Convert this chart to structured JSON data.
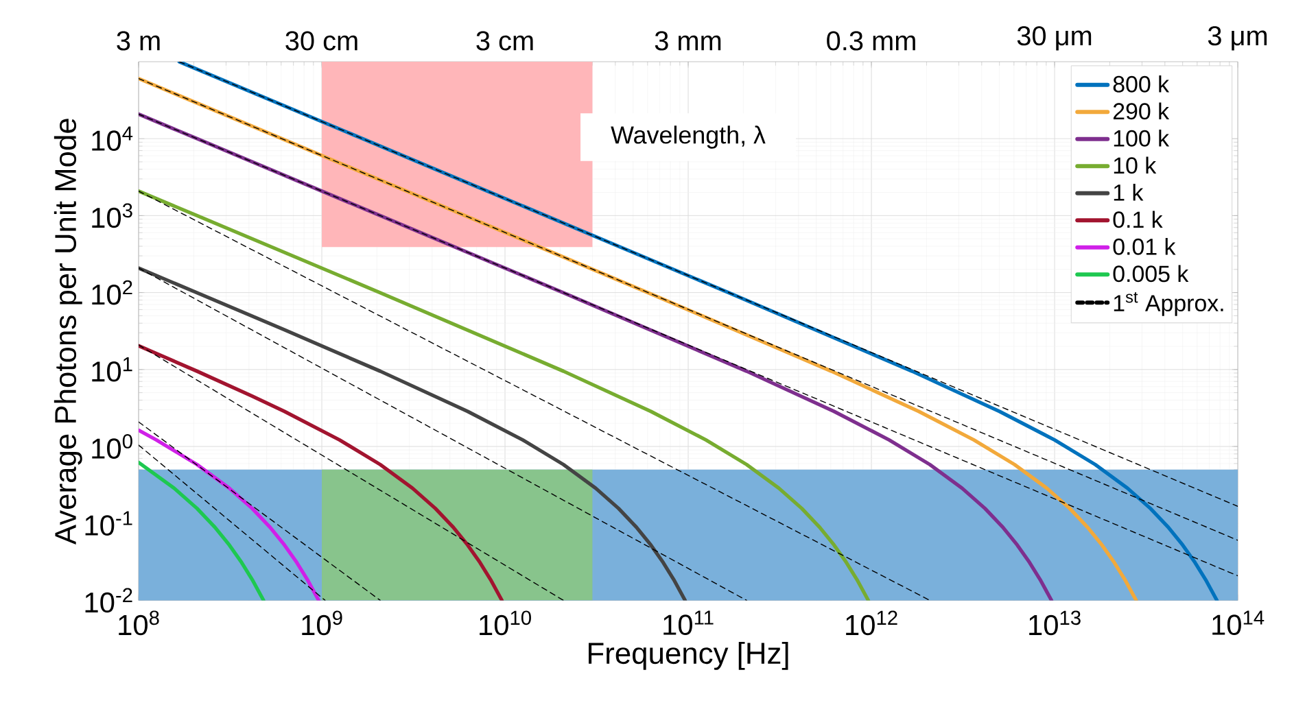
{
  "chart_data": {
    "type": "line",
    "xlabel": "Frequency [Hz]",
    "ylabel": "Average Photons per Unit Mode",
    "annotations": [
      "Wavelength,  λ",
      {
        "text": "3 m",
        "x": 100000000.0
      },
      {
        "text": "30 cm",
        "x": 1000000000.0
      },
      {
        "text": "3 cm",
        "x": 10000000000.0
      },
      {
        "text": "3 mm",
        "x": 100000000000.0
      },
      {
        "text": "0.3 mm",
        "x": 1000000000000.0
      },
      {
        "text": "30 μm",
        "x": 10000000000000.0
      },
      {
        "text": "3 μm",
        "x": 100000000000000.0
      }
    ],
    "log": "xy",
    "grid": true,
    "legend": "top right",
    "marker": "none",
    "line_style": "solid",
    "xlim": [
      100000000.0,
      100000000000000.0
    ],
    "ylim": [
      0.01,
      100000
    ],
    "xticks": [
      {
        "value": 100000000.0,
        "label": "10$^{8}$"
      },
      {
        "value": 1000000000.0,
        "label": "10$^{9}$"
      },
      {
        "value": 10000000000.0,
        "label": "10$^{10}$"
      },
      {
        "value": 100000000000.0,
        "label": "10$^{11}$"
      },
      {
        "value": 1000000000000.0,
        "label": "10$^{12}$"
      },
      {
        "value": 10000000000000.0,
        "label": "10$^{13}$"
      },
      {
        "value": 100000000000000.0,
        "label": "10$^{14}$"
      }
    ],
    "yticks": [
      {
        "value": 0.01,
        "label": "10$^{-2}$"
      },
      {
        "value": 0.1,
        "label": "10$^{-1}$"
      },
      {
        "value": 1,
        "label": "10$^{0}$"
      },
      {
        "value": 10,
        "label": "10$^{1}$"
      },
      {
        "value": 100,
        "label": "10$^{2}$"
      },
      {
        "value": 1000,
        "label": "10$^{3}$"
      },
      {
        "value": 10000,
        "label": "10$^{4}$"
      }
    ],
    "bands": [
      {
        "axis": "y",
        "from": 0.01,
        "to": 0.5,
        "color": "#7ab0db"
      }
    ],
    "series": [
      {
        "type": "area",
        "color": "#88c48c",
        "x": [
          1000000000.0,
          30000000000.0
        ],
        "values": [
          null,
          null
        ],
        "lower": [
          0.01,
          0.01
        ],
        "upper": [
          0.5,
          0.5
        ]
      },
      {
        "type": "area",
        "color": "#ffb6b9",
        "x": [
          1000000000.0,
          30000000000.0
        ],
        "values": [
          null,
          null
        ],
        "lower": [
          390,
          390
        ],
        "upper": [
          100000,
          100000
        ]
      },
      {
        "name": "800 k",
        "color": "#0072bd",
        "x": [
          166700000.0,
          1667000000.0,
          16670000000.0,
          166700000000.0,
          1667000000000.0,
          5000000000000.0,
          10000000000000.0,
          16670000000000.0,
          25000000000000.0,
          33340000000000.0,
          41680000000000.0,
          50000000000000.0,
          58350000000000.0,
          66680000000000.0,
          76930000000000.0
        ],
        "values": [
          100000,
          9999.5,
          999.5,
          99.5,
          9.508,
          2.858,
          1.216,
          0.582,
          0.287,
          0.1565,
          0.0894,
          0.0524,
          0.0311,
          0.01866,
          0.01
        ]
      },
      {
        "name": "290 k",
        "color": "#f2a93b",
        "x": [
          100000000.0,
          604400000.0,
          6044000000.0,
          60440000000.0,
          604400000000.0,
          1813000000000.0,
          3626000000000.0,
          6044000000000.0,
          9066000000000.0,
          12090000000000.0,
          15110000000000.0,
          18130000000000.0,
          21150000000000.0,
          24180000000000.0,
          27890000000000.0
        ],
        "values": [
          60430,
          9999.5,
          999.5,
          99.5,
          9.508,
          2.858,
          1.216,
          0.582,
          0.287,
          0.1565,
          0.0894,
          0.0524,
          0.0311,
          0.01866,
          0.01
        ]
      },
      {
        "name": "100 k",
        "color": "#7e2f8e",
        "x": [
          100000000.0,
          208400000.0,
          2084000000.0,
          20840000000.0,
          208400000000.0,
          625200000000.0,
          1250000000000.0,
          2084000000000.0,
          3126000000000.0,
          4168000000000.0,
          5210000000000.0,
          6252000000000.0,
          7294000000000.0,
          8336000000000.0,
          9618000000000.0
        ],
        "values": [
          20840,
          9999.5,
          999.5,
          99.5,
          9.508,
          2.858,
          1.216,
          0.582,
          0.287,
          0.1565,
          0.0894,
          0.0524,
          0.0311,
          0.01866,
          0.01
        ]
      },
      {
        "name": "10 k",
        "color": "#77ac30",
        "x": [
          100000000.0,
          208400000.0,
          2084000000.0,
          20840000000.0,
          62520000000.0,
          125000000000.0,
          208400000000.0,
          312600000000.0,
          416800000000.0,
          521000000000.0,
          625200000000.0,
          729400000000.0,
          833600000000.0,
          961800000000.0
        ],
        "values": [
          2083.5,
          999.5,
          99.5,
          9.508,
          2.858,
          1.216,
          0.582,
          0.287,
          0.1565,
          0.0894,
          0.0524,
          0.0311,
          0.01866,
          0.01
        ]
      },
      {
        "name": "1 k",
        "color": "#444444",
        "x": [
          100000000.0,
          208400000.0,
          625200000.0,
          2084000000.0,
          6252000000.0,
          12500000000.0,
          20840000000.0,
          31260000000.0,
          41680000000.0,
          52100000000.0,
          62520000000.0,
          72940000000.0,
          83360000000.0,
          96180000000.0
        ],
        "values": [
          207.9,
          99.5,
          32.8,
          9.508,
          2.858,
          1.216,
          0.582,
          0.287,
          0.1565,
          0.0894,
          0.0524,
          0.0311,
          0.01866,
          0.01
        ]
      },
      {
        "name": "0.1 k",
        "color": "#a2142f",
        "x": [
          100000000.0,
          208400000.0,
          416800000.0,
          625200000.0,
          1250000000.0,
          2084000000.0,
          3126000000.0,
          4168000000.0,
          5210000000.0,
          6252000000.0,
          7294000000.0,
          8336000000.0,
          9618000000.0
        ],
        "values": [
          20.34,
          9.508,
          4.517,
          2.858,
          1.216,
          0.582,
          0.287,
          0.1565,
          0.0894,
          0.0524,
          0.0311,
          0.01866,
          0.01
        ]
      },
      {
        "name": "0.01 k",
        "color": "#d020e8",
        "x": [
          100000000.0,
          125000000.0,
          208400000.0,
          312600000.0,
          416800000.0,
          521000000.0,
          625200000.0,
          729400000.0,
          833600000.0,
          961800000.0
        ],
        "values": [
          1.623,
          1.216,
          0.582,
          0.287,
          0.1565,
          0.0894,
          0.0524,
          0.0311,
          0.01866,
          0.01
        ]
      },
      {
        "name": "0.005 k",
        "color": "#1ec850",
        "x": [
          100000000.0,
          156300000.0,
          208400000.0,
          260500000.0,
          312600000.0,
          364700000.0,
          416800000.0,
          480900000.0
        ],
        "values": [
          0.6205,
          0.287,
          0.1565,
          0.0894,
          0.0524,
          0.0311,
          0.01866,
          0.01
        ]
      },
      {
        "name": "1$^{st}$ Approx.",
        "color": "#000000",
        "line_style": "dashed",
        "x": [
          166700000.0,
          100000000000000.0
        ],
        "values": [
          100000,
          0.1667
        ]
      },
      {
        "color": "#000000",
        "line_style": "dashed",
        "x": [
          100000000.0,
          100000000000000.0
        ],
        "values": [
          60430,
          0.0604
        ]
      },
      {
        "color": "#000000",
        "line_style": "dashed",
        "x": [
          100000000.0,
          100000000000000.0
        ],
        "values": [
          20840,
          0.02084
        ]
      },
      {
        "color": "#000000",
        "line_style": "dashed",
        "x": [
          100000000.0,
          2084000000000.0
        ],
        "values": [
          2084,
          0.01
        ]
      },
      {
        "color": "#000000",
        "line_style": "dashed",
        "x": [
          100000000.0,
          208400000000.0
        ],
        "values": [
          208.4,
          0.01
        ]
      },
      {
        "color": "#000000",
        "line_style": "dashed",
        "x": [
          100000000.0,
          20840000000.0
        ],
        "values": [
          20.84,
          0.01
        ]
      },
      {
        "color": "#000000",
        "line_style": "dashed",
        "x": [
          100000000.0,
          2084000000.0
        ],
        "values": [
          2.084,
          0.01
        ]
      },
      {
        "color": "#000000",
        "line_style": "dashed",
        "x": [
          100000000.0,
          1042000000.0
        ],
        "values": [
          1.042,
          0.01
        ]
      }
    ]
  }
}
